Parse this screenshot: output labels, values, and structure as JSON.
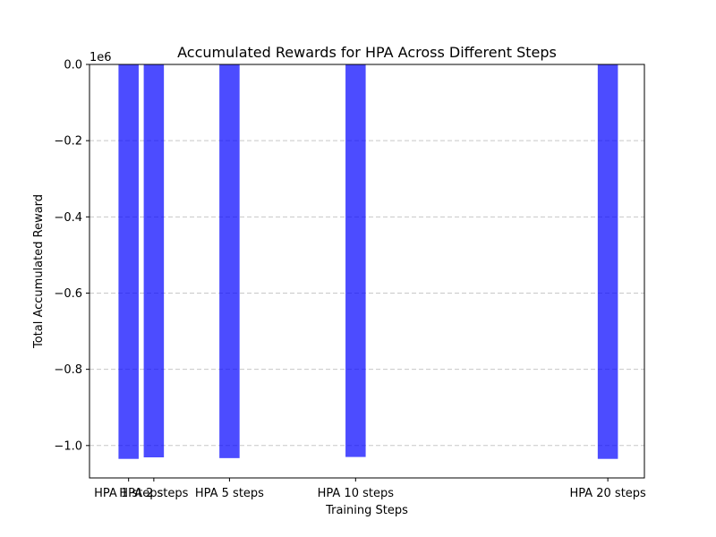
{
  "chart_data": {
    "type": "bar",
    "title": "Accumulated Rewards for HPA Across Different Steps",
    "xlabel": "Training Steps",
    "ylabel": "Total Accumulated Reward",
    "y_offset_text": "1e6",
    "x_scale": "linear (bars placed at their step value)",
    "categories": [
      "HPA 1 steps",
      "HPA 2 steps",
      "HPA 5 steps",
      "HPA 10 steps",
      "HPA 20 steps"
    ],
    "x": [
      1,
      2,
      5,
      10,
      20
    ],
    "values": [
      -1035000,
      -1031000,
      -1033000,
      -1030000,
      -1035000
    ],
    "y_ticks": [
      0.0,
      -0.2,
      -0.4,
      -0.6,
      -0.8,
      -1.0
    ],
    "y_tick_labels": [
      "0.0",
      "−0.2",
      "−0.4",
      "−0.6",
      "−0.8",
      "−1.0"
    ],
    "ylim": [
      -1085000,
      0
    ],
    "xlim": [
      -0.55,
      21.45
    ],
    "bar_color": "#0000ff",
    "bar_alpha": 0.7,
    "grid": "y-axis dashed"
  }
}
